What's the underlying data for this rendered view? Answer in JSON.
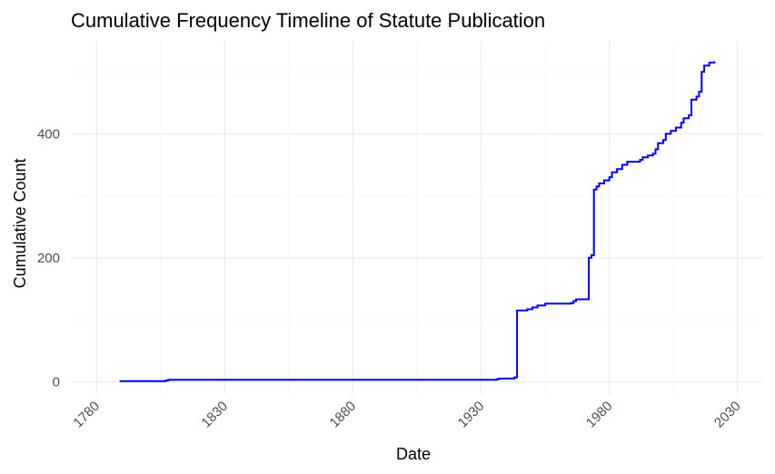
{
  "chart_data": {
    "type": "line",
    "title": "Cumulative Frequency Timeline of Statute Publication",
    "xlabel": "Date",
    "ylabel": "Cumulative Count",
    "x_ticks": [
      "1780",
      "1830",
      "1880",
      "1930",
      "1980",
      "2030"
    ],
    "y_ticks": [
      "0",
      "200",
      "400"
    ],
    "xlim": [
      1770,
      2040
    ],
    "ylim": [
      -20,
      550
    ],
    "grid": true,
    "line_color": "#0000ff",
    "series": [
      {
        "points": [
          [
            1789,
            1
          ],
          [
            1807,
            2
          ],
          [
            1808,
            3
          ],
          [
            1926,
            3
          ],
          [
            1936,
            4
          ],
          [
            1937,
            5
          ],
          [
            1943,
            7
          ],
          [
            1944,
            7
          ],
          [
            1944,
            115
          ],
          [
            1948,
            117
          ],
          [
            1950,
            120
          ],
          [
            1952,
            123
          ],
          [
            1955,
            126
          ],
          [
            1965,
            127
          ],
          [
            1966,
            130
          ],
          [
            1967,
            133
          ],
          [
            1972,
            134
          ],
          [
            1972,
            200
          ],
          [
            1973,
            204
          ],
          [
            1974,
            204
          ],
          [
            1974,
            310
          ],
          [
            1975,
            315
          ],
          [
            1976,
            320
          ],
          [
            1978,
            325
          ],
          [
            1980,
            330
          ],
          [
            1981,
            338
          ],
          [
            1983,
            343
          ],
          [
            1985,
            350
          ],
          [
            1987,
            355
          ],
          [
            1992,
            358
          ],
          [
            1993,
            362
          ],
          [
            1995,
            365
          ],
          [
            1997,
            368
          ],
          [
            1998,
            375
          ],
          [
            1999,
            385
          ],
          [
            2001,
            390
          ],
          [
            2002,
            400
          ],
          [
            2004,
            405
          ],
          [
            2006,
            410
          ],
          [
            2008,
            418
          ],
          [
            2009,
            425
          ],
          [
            2011,
            430
          ],
          [
            2012,
            433
          ],
          [
            2012,
            455
          ],
          [
            2014,
            460
          ],
          [
            2015,
            468
          ],
          [
            2016,
            480
          ],
          [
            2016,
            500
          ],
          [
            2017,
            510
          ],
          [
            2019,
            515
          ],
          [
            2021,
            517
          ]
        ]
      }
    ]
  }
}
